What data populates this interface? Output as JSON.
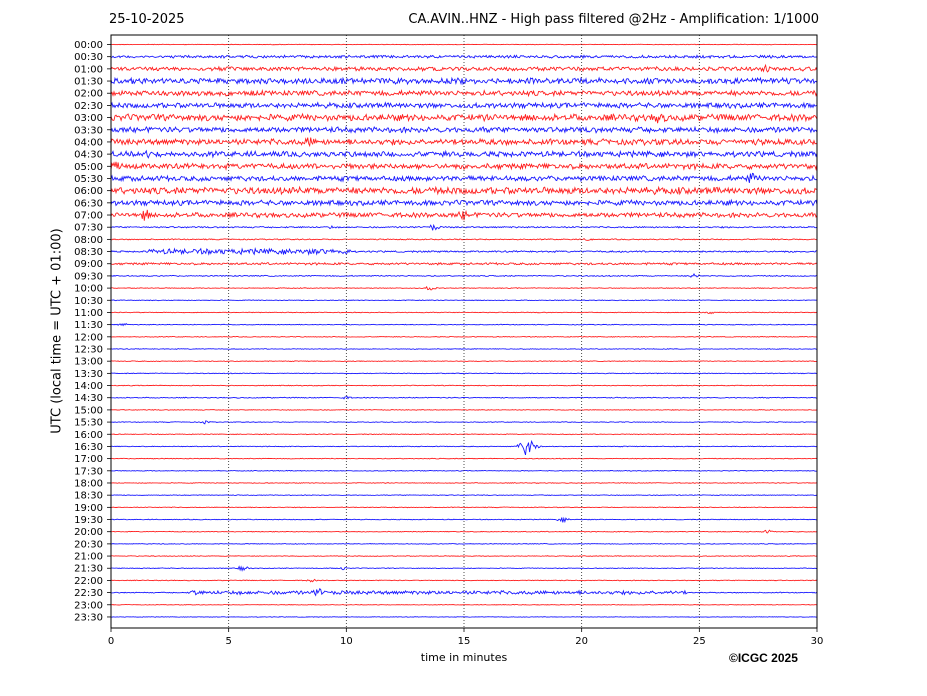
{
  "header": {
    "date": "25-10-2025",
    "title": "CA.AVIN..HNZ - High pass filtered @2Hz - Amplification: 1/1000"
  },
  "footer": {
    "credit": "©ICGC 2025"
  },
  "colors": {
    "red_trace": "#ff2020",
    "blue_trace": "#1a1aff",
    "grid": "#222222"
  },
  "chart_data": {
    "type": "line",
    "title": "CA.AVIN..HNZ - High pass filtered @2Hz - Amplification: 1/1000",
    "xlabel": "time in minutes",
    "ylabel": "UTC (local time = UTC + 01:00)",
    "xlim": [
      0,
      30
    ],
    "xticks": [
      0,
      5,
      10,
      15,
      20,
      25,
      30
    ],
    "grid": "vertical dotted at each x tick",
    "trace_colors_alternate": [
      "red",
      "blue"
    ],
    "rows": [
      "00:00",
      "00:30",
      "01:00",
      "01:30",
      "02:00",
      "02:30",
      "03:00",
      "03:30",
      "04:00",
      "04:30",
      "05:00",
      "05:30",
      "06:00",
      "06:30",
      "07:00",
      "07:30",
      "08:00",
      "08:30",
      "09:00",
      "09:30",
      "10:00",
      "10:30",
      "11:00",
      "11:30",
      "12:00",
      "12:30",
      "13:00",
      "13:30",
      "14:00",
      "14:30",
      "15:00",
      "15:30",
      "16:00",
      "16:30",
      "17:00",
      "17:30",
      "18:00",
      "18:30",
      "19:00",
      "19:30",
      "20:00",
      "20:30",
      "21:00",
      "21:30",
      "22:00",
      "22:30",
      "23:00",
      "23:30"
    ],
    "noise_level": [
      0.3,
      1.2,
      2.2,
      3.2,
      2.8,
      2.8,
      3.6,
      3.0,
      3.2,
      3.0,
      3.0,
      2.8,
      3.8,
      2.8,
      2.6,
      0.8,
      0.6,
      0.9,
      1.2,
      0.6,
      0.4,
      0.4,
      0.4,
      0.4,
      0.4,
      0.4,
      0.4,
      0.4,
      0.4,
      0.5,
      0.4,
      0.4,
      0.4,
      0.4,
      0.4,
      0.4,
      0.4,
      0.4,
      0.4,
      0.4,
      0.4,
      0.4,
      0.4,
      0.4,
      0.4,
      0.5,
      0.3,
      0.3
    ],
    "active_segments": [
      {
        "row": "00:30",
        "start": 2.5,
        "end": 30,
        "amp": 1.5
      },
      {
        "row": "07:00",
        "start": 20.5,
        "end": 30,
        "amp": 0.3
      },
      {
        "row": "08:30",
        "start": 1.6,
        "end": 10.2,
        "amp": 3.0
      },
      {
        "row": "08:30",
        "start": 10.2,
        "end": 30,
        "amp": 0.8
      },
      {
        "row": "22:30",
        "start": 3.5,
        "end": 24.5,
        "amp": 2.0
      }
    ],
    "events": [
      {
        "row": "01:00",
        "minute": 27.8,
        "amp": 5
      },
      {
        "row": "03:00",
        "minute": 23.3,
        "amp": 8
      },
      {
        "row": "04:00",
        "minute": 8.4,
        "amp": 7
      },
      {
        "row": "04:30",
        "minute": 1.5,
        "amp": 5
      },
      {
        "row": "05:00",
        "minute": 0.2,
        "amp": 6
      },
      {
        "row": "05:30",
        "minute": 27.2,
        "amp": 7
      },
      {
        "row": "06:00",
        "minute": 12.0,
        "amp": 4
      },
      {
        "row": "07:00",
        "minute": 1.4,
        "amp": 7
      },
      {
        "row": "07:00",
        "minute": 15.0,
        "amp": 6
      },
      {
        "row": "07:30",
        "minute": 13.7,
        "amp": 4
      },
      {
        "row": "07:30",
        "minute": 9.3,
        "amp": 2
      },
      {
        "row": "08:00",
        "minute": 20.3,
        "amp": 2
      },
      {
        "row": "09:30",
        "minute": 24.8,
        "amp": 3
      },
      {
        "row": "10:00",
        "minute": 13.6,
        "amp": 3
      },
      {
        "row": "11:00",
        "minute": 25.5,
        "amp": 2
      },
      {
        "row": "11:30",
        "minute": 0.5,
        "amp": 2
      },
      {
        "row": "14:30",
        "minute": 10.0,
        "amp": 2
      },
      {
        "row": "15:30",
        "minute": 4.0,
        "amp": 2
      },
      {
        "row": "16:30",
        "minute": 17.7,
        "amp": 10
      },
      {
        "row": "19:30",
        "minute": 19.2,
        "amp": 3
      },
      {
        "row": "20:00",
        "minute": 27.9,
        "amp": 2
      },
      {
        "row": "21:30",
        "minute": 5.6,
        "amp": 3
      },
      {
        "row": "21:30",
        "minute": 9.8,
        "amp": 2
      },
      {
        "row": "22:00",
        "minute": 8.5,
        "amp": 2
      },
      {
        "row": "22:30",
        "minute": 8.8,
        "amp": 5
      },
      {
        "row": "22:30",
        "minute": 3.6,
        "amp": 4
      }
    ]
  }
}
